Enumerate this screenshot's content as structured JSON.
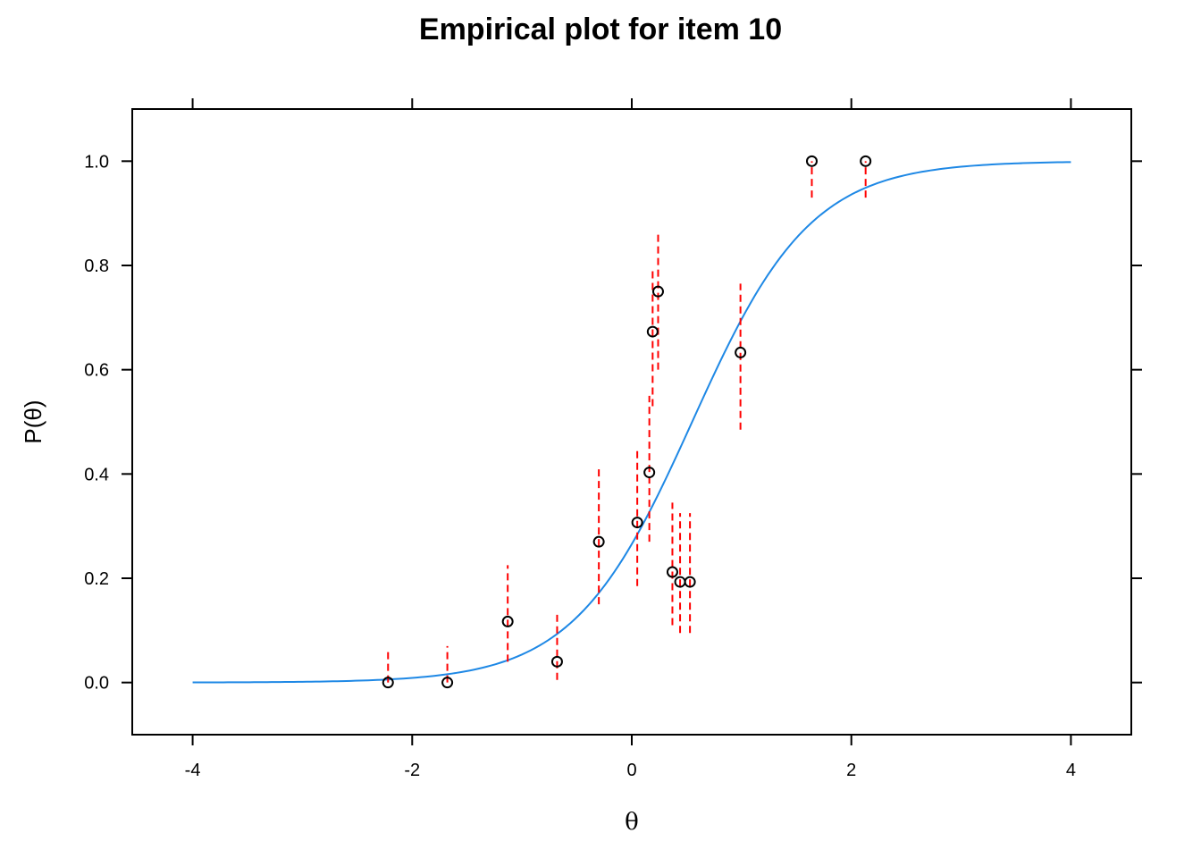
{
  "chart_data": {
    "type": "scatter",
    "title": "Empirical plot for item 10",
    "xlabel": "θ",
    "ylabel": "P(θ)",
    "xlim": [
      -4.55,
      4.55
    ],
    "ylim": [
      -0.1,
      1.1
    ],
    "x_ticks": [
      -4,
      -2,
      0,
      2,
      4
    ],
    "x_tick_labels": [
      "-4",
      "-2",
      "0",
      "2",
      "4"
    ],
    "y_ticks": [
      0.0,
      0.2,
      0.4,
      0.6,
      0.8,
      1.0
    ],
    "y_tick_labels": [
      "0.0",
      "0.2",
      "0.4",
      "0.6",
      "0.8",
      "1.0"
    ],
    "grid": false,
    "colors": {
      "curve": "#1e88e5",
      "error_bars": "#ff0000",
      "points": "#000000"
    },
    "icc_curve": {
      "description_only_for_drawing": false,
      "a": 1.85,
      "b": 0.55,
      "x_range": [
        -4,
        4
      ]
    },
    "points": [
      {
        "x": -2.22,
        "y": 0.0,
        "lo": 0.0,
        "hi": 0.065
      },
      {
        "x": -1.68,
        "y": 0.0,
        "lo": 0.0,
        "hi": 0.07
      },
      {
        "x": -1.13,
        "y": 0.117,
        "lo": 0.04,
        "hi": 0.225
      },
      {
        "x": -0.68,
        "y": 0.04,
        "lo": 0.005,
        "hi": 0.13
      },
      {
        "x": -0.3,
        "y": 0.27,
        "lo": 0.15,
        "hi": 0.415
      },
      {
        "x": 0.05,
        "y": 0.307,
        "lo": 0.185,
        "hi": 0.45
      },
      {
        "x": 0.16,
        "y": 0.403,
        "lo": 0.27,
        "hi": 0.55
      },
      {
        "x": 0.19,
        "y": 0.673,
        "lo": 0.53,
        "hi": 0.79
      },
      {
        "x": 0.24,
        "y": 0.75,
        "lo": 0.6,
        "hi": 0.86
      },
      {
        "x": 0.37,
        "y": 0.212,
        "lo": 0.11,
        "hi": 0.345
      },
      {
        "x": 0.44,
        "y": 0.193,
        "lo": 0.095,
        "hi": 0.325
      },
      {
        "x": 0.53,
        "y": 0.193,
        "lo": 0.095,
        "hi": 0.325
      },
      {
        "x": 0.99,
        "y": 0.633,
        "lo": 0.485,
        "hi": 0.765
      },
      {
        "x": 1.64,
        "y": 1.0,
        "lo": 0.93,
        "hi": 1.0
      },
      {
        "x": 2.13,
        "y": 1.0,
        "lo": 0.93,
        "hi": 1.0
      }
    ]
  }
}
